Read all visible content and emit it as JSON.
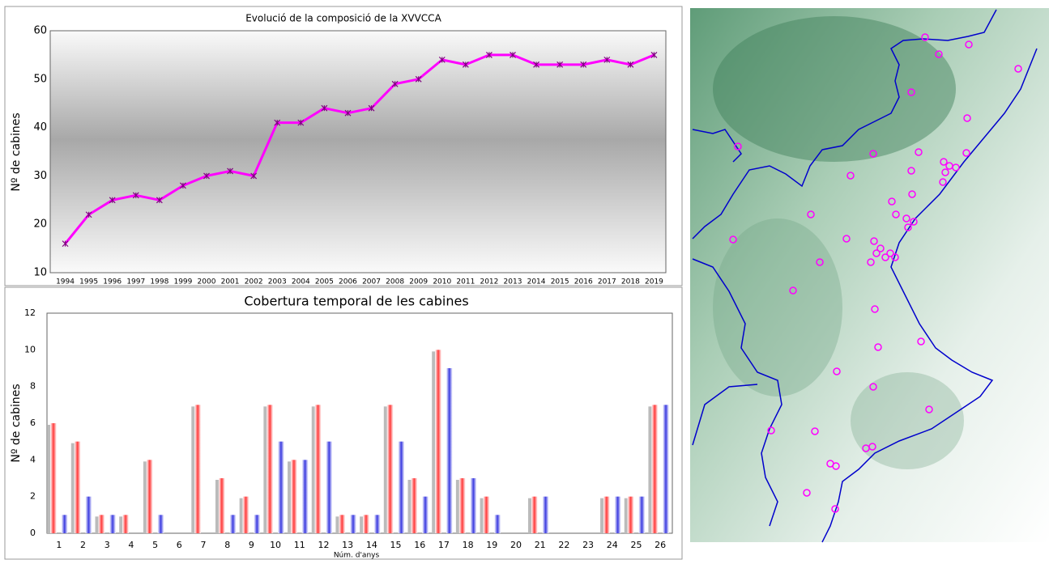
{
  "chart_data": [
    {
      "type": "line",
      "title": "Evolució de la composició de la XVVCCA",
      "y_label": "Nº de cabines",
      "categories": [
        "1994",
        "1995",
        "1996",
        "1997",
        "1998",
        "1999",
        "2000",
        "2001",
        "2002",
        "2003",
        "2004",
        "2005",
        "2006",
        "2007",
        "2008",
        "2009",
        "2010",
        "2011",
        "2012",
        "2013",
        "2014",
        "2015",
        "2016",
        "2017",
        "2018",
        "2019"
      ],
      "values": [
        16,
        22,
        25,
        26,
        25,
        28,
        30,
        31,
        30,
        41,
        41,
        44,
        43,
        44,
        49,
        50,
        54,
        53,
        55,
        55,
        53,
        53,
        53,
        54,
        53,
        55
      ],
      "color": "#ff00ff",
      "ylim": [
        10,
        60
      ],
      "yticks": [
        10,
        20,
        30,
        40,
        50,
        60
      ],
      "grid": true
    },
    {
      "type": "bar",
      "title": "Cobertura temporal de les cabines",
      "y_label": "Nº de cabines",
      "x_label": "Núm. d'anys",
      "categories": [
        1,
        2,
        3,
        4,
        5,
        6,
        7,
        8,
        9,
        10,
        11,
        12,
        13,
        14,
        15,
        16,
        17,
        18,
        19,
        20,
        21,
        22,
        23,
        24,
        25,
        26
      ],
      "series": [
        {
          "color": "#ff3a3a",
          "values": [
            6,
            5,
            1,
            1,
            4,
            0,
            7,
            3,
            2,
            7,
            4,
            7,
            1,
            1,
            7,
            3,
            10,
            3,
            2,
            0,
            2,
            0,
            0,
            2,
            2,
            7
          ]
        },
        {
          "color": "#3a3ae0",
          "values": [
            1,
            2,
            1,
            0,
            1,
            0,
            0,
            1,
            1,
            5,
            4,
            5,
            1,
            1,
            5,
            2,
            9,
            3,
            1,
            0,
            2,
            0,
            0,
            2,
            2,
            7
          ]
        }
      ],
      "ylim": [
        0,
        12
      ],
      "yticks": [
        0,
        2,
        4,
        6,
        8,
        10,
        12
      ],
      "grid": true
    }
  ]
}
